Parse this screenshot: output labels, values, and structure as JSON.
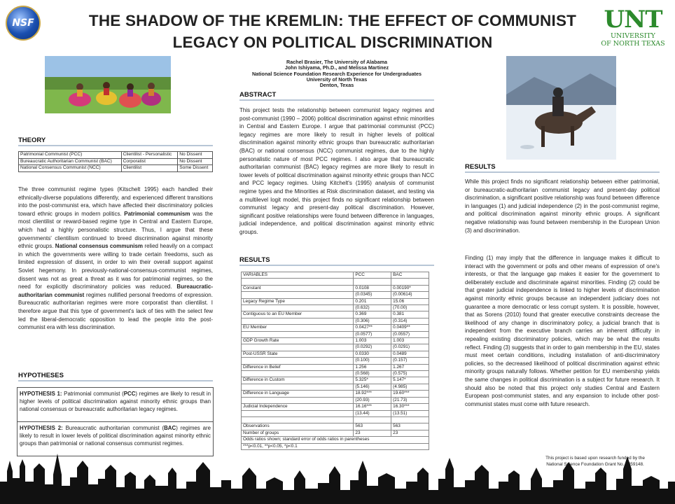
{
  "logo_left": "NSF",
  "logo_right": {
    "big": "UNT",
    "line1": "UNIVERSITY",
    "line2": "OF NORTH TEXAS"
  },
  "title": {
    "line1": "THE SHADOW OF THE KREMLIN:  THE EFFECT OF COMMUNIST",
    "line2": "LEGACY ON POLITICAL DISCRIMINATION"
  },
  "authors": [
    "Rachel Brasier, The University of Alabama",
    "John Ishiyama, Ph.D., and Melissa Martinez",
    "National Science Foundation Research Experience for Undergraduates",
    "University of North Texas",
    "Denton, Texas"
  ],
  "theory": {
    "heading": "THEORY",
    "table": [
      [
        "Patrimonial Communist (PCC)",
        "Clientilist - Personalistic",
        "No Dissent"
      ],
      [
        "Bureaucratic Authoritarian Communist (BAC)",
        "Corporatist",
        "No Dissent"
      ],
      [
        "National Consensus Communist (NCC)",
        "Clientilist",
        "Some Dissent"
      ]
    ],
    "p1": "The three communist regime types (Kitschelt 1995) each handled their ethnically-diverse populations differently, and experienced different transitions into the post-communist era, which have affected their discriminatory policies toward ethnic groups in modern politics.",
    "pc_bold": "Patrimonial communism",
    "p2": " was the most clientilist or reward-based regime type in Central and Eastern Europe, which had a highly personalistic structure. Thus, I argue that these governments' clientilism continued to breed discrimination against minority ethnic groups. ",
    "nc_bold": "National consensus communism",
    "p3": " relied heavily on a compact in which the governments were willing to trade certain freedoms, such as limited expression of dissent, in order to win their overall support against Soviet hegemony. In previously-national-consensus-communist regimes, dissent was not as great a threat as it was for patrimonial regimes, so the need for explicitly discriminatory policies was reduced. ",
    "ba_bold": "Bureaucratic-authoritarian communist",
    "p4": " regimes nullified personal freedoms of expression. Bureaucratic authoritarian regimes were more corporatist than clientilist. I therefore argue that this type of government's lack of ties with the select few led the liberal-democratic opposition to lead the people into the post-communist era with less discrimination."
  },
  "hypotheses": {
    "heading": "HYPOTHESES",
    "h1_label": "HYPOTHESIS 1:",
    "h1_a": " Patrimonial communist (",
    "h1_b": "PCC",
    "h1_c": ") regimes are likely to result in higher levels of political discrimination against minority ethnic groups than national consensus or bureaucratic authoritarian legacy regimes.",
    "h2_label": "HYPOTHESIS 2:",
    "h2_a": " Bureaucratic authoritarian communist (",
    "h2_b": "BAC",
    "h2_c": ") regimes are likely to result in lower levels of political discrimination against minority ethnic groups than patrimonial or national consensus communist regimes."
  },
  "abstract": {
    "heading": "ABSTRACT",
    "text": "This project tests the relationship between communist legacy regimes and post-communist (1990 – 2006) political discrimination against ethnic minorities in Central and Eastern Europe. I argue that patrimonial communist (PCC) legacy regimes are more likely to result in higher levels of political discrimination against minority ethnic groups than bureaucratic authoritarian (BAC) or national consensus (NCC) communist regimes, due to the highly personalistic nature of most PCC regimes. I also argue that bureaucratic authoritarian communist (BAC) legacy regimes are more likely to result in lower levels of political discrimination against minority ethnic groups than NCC and PCC legacy regimes. Using Kitchelt's (1995) analysis of communist regime types and the Minorities at Risk discrimination dataset, and testing via a multilevel logit model, this project finds no significant relationship between communist legacy and present-day political discrimination. However, significant positive relationships were found between difference in languages, judicial independence, and political discrimination against minority ethnic groups."
  },
  "results_table": {
    "heading": "RESULTS",
    "header": [
      "VARIABLES",
      "PCC",
      "BAC"
    ],
    "rows": [
      [
        "",
        "",
        ""
      ],
      [
        "Constant",
        "0.0108",
        "0.00190*"
      ],
      [
        "",
        "(0.0345)",
        "(0.00614)"
      ],
      [
        "Legacy Regime Type",
        "0.201",
        "15.06"
      ],
      [
        "",
        "(0.632)",
        "(70.00)"
      ],
      [
        "Contiguous to an EU Member",
        "0.369",
        "0.381"
      ],
      [
        "",
        "(0.306)",
        "(0.314)"
      ],
      [
        "EU Member",
        "0.0427**",
        "0.0409**"
      ],
      [
        "",
        "(0.0577)",
        "(0.0557)"
      ],
      [
        "GDP Growth Rate",
        "1.003",
        "1.003"
      ],
      [
        "",
        "(0.0292)",
        "(0.0291)"
      ],
      [
        "Post-USSR State",
        "0.0330",
        "0.0489"
      ],
      [
        "",
        "(0.100)",
        "(0.157)"
      ],
      [
        "Difference in Belief",
        "1.256",
        "1.267"
      ],
      [
        "",
        "(0.568)",
        "(0.575)"
      ],
      [
        "Difference in Custom",
        "5.325*",
        "5.147*"
      ],
      [
        "",
        "(5.146)",
        "(4.985)"
      ],
      [
        "Difference in Language",
        "18.92***",
        "19.60***"
      ],
      [
        "",
        "(20.93)",
        "(21.73)"
      ],
      [
        "Judicial Independence",
        "16.16***",
        "16.30***"
      ],
      [
        "",
        "(13.44)",
        "(13.51)"
      ],
      [
        "",
        "",
        ""
      ],
      [
        "Observations",
        "563",
        "563"
      ],
      [
        "Number of groups",
        "23",
        "23"
      ]
    ],
    "foot1": "Odds ratios shown; standard error of odds ratios in parentheses",
    "foot2": "***p<0.01, **p<0.05, *p<0.1"
  },
  "results_right": {
    "heading": "RESULTS",
    "p1": "While this project finds no significant relationship between either patrimonial, or bureaucratic-authoritarian communist legacy and present-day political discrimination, a significant positive relationship was found between difference in languages (1) and judicial independence (2) in the post-communist regime, and political discrimination against minority ethnic groups. A significant negative relationship was found between membership in the European Union (3) and discrimination.",
    "p2": "Finding (1) may imply that the difference in language makes it difficult to interact with the government or polls and other means of expression of one's interests, or that the language gap makes it easier for the government to deliberately exclude and discriminate against minorities. Finding (2) could be that greater judicial independence is linked to higher levels of discrimination against minority ethnic groups because an independent judiciary does not guarantee a more democratic or less corrupt system. It is possible, however, that as Sorens (2010) found that greater executive constraints decrease the likelihood of any change in discriminatory policy, a judicial branch that is independent from the executive branch carries an inherent difficulty in repealing existing discriminatory policies, which may be what the results reflect. Finding (3) suggests that in order to gain membership in the EU, states must meet certain conditions, including installation of anti-discriminatory policies, so the decreased likelihood of political discrimination against ethnic minority groups naturally follows. Whether petition for EU membership yields the same changes in political discrimination is a subject for future research. It should also be noted that this project only studies Central and Eastern European post-communist states, and any expansion to include other post-communist states must come with future research."
  },
  "funding_note": {
    "line1": "This project is based upon research funded by the",
    "line2": "National Science Foundation Grant No. 1359148."
  }
}
